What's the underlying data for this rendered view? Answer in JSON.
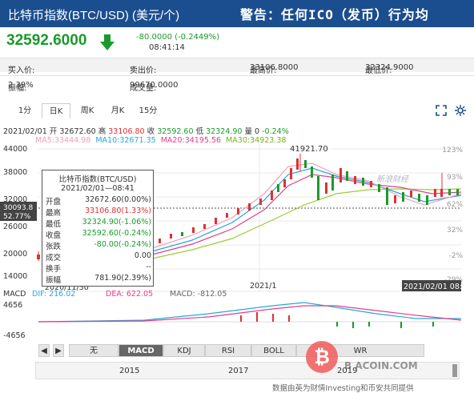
{
  "header": {
    "title": "比特币指数(BTC/USD) (美元/个)",
    "warning": "警告：任何ICO（发币）行为均",
    "bg": "#1b4e8e"
  },
  "quote": {
    "price": "32592.6000",
    "change": "-80.0000 (-0.2449%)",
    "time": "08:41:14",
    "color": "#1a9a2a"
  },
  "info_rows": [
    [
      {
        "k": "买入价:",
        "v": "--"
      },
      {
        "k": "卖出价:",
        "v": "--"
      },
      {
        "k": "最高价:",
        "v": "33106.8000"
      },
      {
        "k": "最低价:",
        "v": "32324.9000"
      }
    ],
    [
      {
        "k": "振幅:",
        "v": "2.39%"
      },
      {
        "k": "成交量:",
        "v": "99670.0000"
      }
    ]
  ],
  "tabs": [
    "1分",
    "日K",
    "周K",
    "月K",
    "15分"
  ],
  "active_tab": "日K",
  "ohlc": {
    "date": "2021/02/01",
    "open_k": "开",
    "open": "32672.60",
    "high_k": "高",
    "high": "33106.80",
    "close_k": "收",
    "close": "32592.60",
    "low_k": "低",
    "low": "32324.90",
    "vol_k": "量",
    "vol": "0",
    "pct": "-0.24%"
  },
  "ma": [
    {
      "label": "MA5:",
      "v": "33444.98",
      "c": "#f0a0c0"
    },
    {
      "label": "MA10:",
      "v": "32671.35",
      "c": "#2aa6d8"
    },
    {
      "label": "MA20:",
      "v": "34195.56",
      "c": "#e0408a"
    },
    {
      "label": "MA30:",
      "v": "34923.38",
      "c": "#9acd32"
    }
  ],
  "axis": {
    "y_left": [
      "44000",
      "38000",
      "32000",
      "26000",
      "20000",
      "14000"
    ],
    "y_right": [
      "123%",
      "93%",
      "62%",
      "32%",
      "-2%",
      "-29%"
    ],
    "cur_price": "30093.8",
    "cur_pct": "52.77%",
    "peak": "41921.70",
    "x_mid": "2021/1",
    "x_right": "2021/02/01 08:41",
    "x_left": "2020/11/30"
  },
  "tooltip": {
    "title": "比特币指数(BTC/USD)",
    "date": "2021/02/01—08:41",
    "rows": [
      {
        "k": "开盘",
        "v": "32672.60(0.00%)",
        "c": "#333"
      },
      {
        "k": "最高",
        "v": "33106.80(1.33%)",
        "c": "#e03030"
      },
      {
        "k": "最低",
        "v": "32324.90(-1.06%)",
        "c": "#1a9a2a"
      },
      {
        "k": "收盘",
        "v": "32592.60(-0.24%)",
        "c": "#1a9a2a"
      },
      {
        "k": "张跌",
        "v": "-80.00(-0.24%)",
        "c": "#1a9a2a"
      },
      {
        "k": "成交",
        "v": "0.00",
        "c": "#333"
      },
      {
        "k": "换手",
        "v": "--",
        "c": "#333"
      },
      {
        "k": "振幅",
        "v": "781.90(2.39%)",
        "c": "#333"
      }
    ]
  },
  "watermark": "新浪财经",
  "macd": {
    "label": "MACD",
    "dif": "DIF: 216.02",
    "dea": "DEA: 622.05",
    "macd": "MACD: -812.05",
    "top": "4656",
    "bottom": "-4656"
  },
  "indicators": [
    "无",
    "MACD",
    "KDJ",
    "RSI",
    "BOLL",
    "WR"
  ],
  "active_indicator": "MACD",
  "nav_years": [
    "2015",
    "2017",
    "2019"
  ],
  "footer": "数据由英为财情Investing和币安共同提供",
  "brand": "B ACOIN.COM"
}
